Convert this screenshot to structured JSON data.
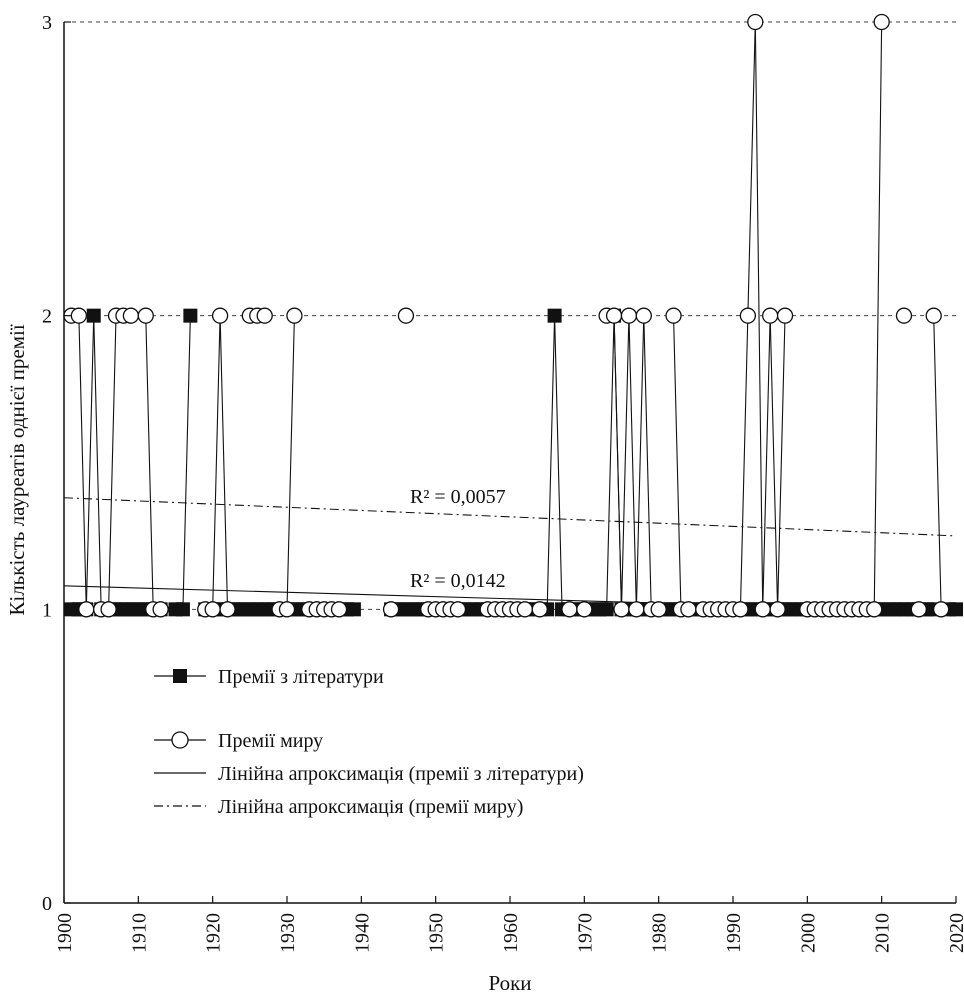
{
  "chart_data": {
    "type": "line",
    "xlabel": "Роки",
    "ylabel": "Кількість лауреатів однієї премії",
    "xlim": [
      1900,
      2020
    ],
    "ylim": [
      0,
      3
    ],
    "x_ticks": [
      "1900",
      "1910",
      "1920",
      "1930",
      "1940",
      "1950",
      "1960",
      "1970",
      "1980",
      "1990",
      "2000",
      "2010",
      "2020"
    ],
    "y_ticks": [
      "0",
      "1",
      "2",
      "3"
    ],
    "reference_lines_y": [
      1,
      2,
      3
    ],
    "series": [
      {
        "name": "Премії з літератури",
        "marker": "filled-square",
        "x": [
          1901,
          1902,
          1903,
          1904,
          1905,
          1906,
          1907,
          1908,
          1909,
          1910,
          1911,
          1912,
          1913,
          1914,
          1915,
          1916,
          1917,
          1918,
          1919,
          1920,
          1921,
          1922,
          1923,
          1924,
          1925,
          1926,
          1927,
          1928,
          1929,
          1930,
          1931,
          1932,
          1933,
          1934,
          1935,
          1936,
          1937,
          1938,
          1939,
          1940,
          1941,
          1942,
          1943,
          1944,
          1945,
          1946,
          1947,
          1948,
          1949,
          1950,
          1951,
          1952,
          1953,
          1954,
          1955,
          1956,
          1957,
          1958,
          1959,
          1960,
          1961,
          1962,
          1963,
          1964,
          1965,
          1966,
          1967,
          1968,
          1969,
          1970,
          1971,
          1972,
          1973,
          1974,
          1975,
          1976,
          1977,
          1978,
          1979,
          1980,
          1981,
          1982,
          1983,
          1984,
          1985,
          1986,
          1987,
          1988,
          1989,
          1990,
          1991,
          1992,
          1993,
          1994,
          1995,
          1996,
          1997,
          1998,
          1999,
          2000,
          2001,
          2002,
          2003,
          2004,
          2005,
          2006,
          2007,
          2008,
          2009,
          2010,
          2011,
          2012,
          2013,
          2014,
          2015,
          2016,
          2017,
          2018,
          2019,
          2020
        ],
        "y": [
          1,
          1,
          1,
          2,
          1,
          1,
          1,
          1,
          1,
          1,
          1,
          1,
          1,
          null,
          1,
          1,
          2,
          null,
          1,
          1,
          1,
          1,
          1,
          1,
          1,
          1,
          1,
          1,
          1,
          1,
          1,
          1,
          1,
          1,
          null,
          1,
          1,
          1,
          1,
          null,
          null,
          null,
          null,
          1,
          1,
          1,
          1,
          1,
          1,
          1,
          1,
          1,
          1,
          1,
          1,
          1,
          1,
          1,
          1,
          1,
          1,
          1,
          1,
          1,
          1,
          2,
          1,
          1,
          1,
          1,
          1,
          1,
          1,
          2,
          1,
          1,
          1,
          1,
          1,
          1,
          1,
          1,
          1,
          1,
          1,
          1,
          1,
          1,
          1,
          1,
          1,
          1,
          1,
          1,
          1,
          1,
          1,
          1,
          1,
          1,
          1,
          1,
          1,
          1,
          1,
          1,
          1,
          1,
          1,
          1,
          1,
          1,
          1,
          1,
          1,
          1,
          1,
          null,
          1,
          1
        ]
      },
      {
        "name": "Премії миру",
        "marker": "open-circle",
        "x": [
          1901,
          1902,
          1903,
          1904,
          1905,
          1906,
          1907,
          1908,
          1909,
          1910,
          1911,
          1912,
          1913,
          1917,
          1919,
          1920,
          1921,
          1922,
          1925,
          1926,
          1927,
          1929,
          1930,
          1931,
          1933,
          1934,
          1935,
          1936,
          1937,
          1938,
          1944,
          1945,
          1946,
          1947,
          1949,
          1950,
          1951,
          1952,
          1953,
          1954,
          1957,
          1958,
          1959,
          1960,
          1961,
          1962,
          1963,
          1964,
          1968,
          1969,
          1970,
          1973,
          1974,
          1975,
          1976,
          1977,
          1978,
          1979,
          1980,
          1981,
          1982,
          1983,
          1984,
          1986,
          1987,
          1988,
          1989,
          1990,
          1991,
          1992,
          1993,
          1994,
          1995,
          1996,
          1997,
          1998,
          2000,
          2001,
          2002,
          2003,
          2004,
          2005,
          2006,
          2007,
          2008,
          2009,
          2010,
          2011,
          2012,
          2013,
          2014,
          2015,
          2016,
          2017,
          2018,
          2019,
          2020
        ],
        "y": [
          2,
          2,
          1,
          null,
          1,
          1,
          2,
          2,
          2,
          null,
          2,
          1,
          1,
          null,
          1,
          1,
          2,
          1,
          2,
          2,
          2,
          1,
          1,
          2,
          1,
          1,
          1,
          1,
          1,
          null,
          1,
          null,
          2,
          null,
          1,
          1,
          1,
          1,
          1,
          null,
          1,
          1,
          1,
          1,
          1,
          1,
          null,
          1,
          1,
          null,
          1,
          2,
          2,
          1,
          2,
          1,
          2,
          1,
          1,
          null,
          2,
          1,
          1,
          1,
          1,
          1,
          1,
          1,
          1,
          2,
          3,
          1,
          2,
          1,
          2,
          null,
          1,
          1,
          1,
          1,
          1,
          1,
          1,
          1,
          1,
          1,
          3,
          null,
          null,
          2,
          null,
          1,
          null,
          2,
          1,
          null,
          null
        ]
      }
    ],
    "trendlines": [
      {
        "name": "Лінійна апроксимація (премії з літератури)",
        "style": "solid",
        "x": [
          1900,
          2009
        ],
        "y": [
          1.08,
          1.0
        ],
        "r2_label": "R² = 0,0142"
      },
      {
        "name": "Лінійна апроксимація (премії миру)",
        "style": "dash-dot",
        "x": [
          1900,
          2020
        ],
        "y": [
          1.38,
          1.25
        ],
        "r2_label": "R² = 0,0057"
      }
    ],
    "legend": {
      "placement": "lower-left",
      "entries": [
        {
          "label": "Премії з літератури",
          "symbol": "line-square"
        },
        {
          "label": "Премії миру",
          "symbol": "line-circle"
        },
        {
          "label": "Лінійна апроксимація (премії з літератури)",
          "symbol": "solid-line"
        },
        {
          "label": "Лінійна апроксимація (премії миру)",
          "symbol": "dash-dot-line"
        }
      ]
    },
    "colors": {
      "ink": "#111111",
      "background": "#ffffff",
      "grid": "#444444"
    }
  }
}
